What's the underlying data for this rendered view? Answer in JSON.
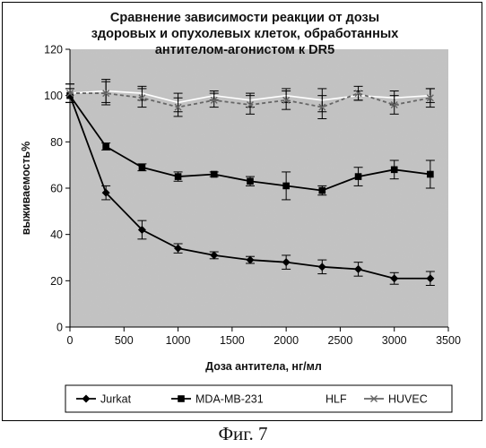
{
  "chart_data": {
    "type": "line",
    "title_lines": [
      "Сравнение зависимости реакции от дозы",
      "здоровых и опухолевых клеток, обработанных",
      "антителом-агонистом к DR5"
    ],
    "xlabel": "Доза антитела, нг/мл",
    "ylabel": "выживаемость%",
    "xlim": [
      0,
      3500
    ],
    "ylim": [
      0,
      120
    ],
    "x_ticks": [
      0,
      500,
      1000,
      1500,
      2000,
      2500,
      3000,
      3500
    ],
    "y_ticks": [
      0,
      20,
      40,
      60,
      80,
      100,
      120
    ],
    "grid": false,
    "legend_position": "bottom",
    "x": [
      0,
      333,
      667,
      1000,
      1333,
      1667,
      2000,
      2333,
      2667,
      3000,
      3333
    ],
    "series": [
      {
        "name": "Jurkat",
        "marker": "diamond",
        "color": "#000000",
        "values": [
          100,
          58,
          42,
          34,
          31,
          29,
          28,
          26,
          25,
          21,
          21
        ],
        "errors": [
          3,
          3,
          4,
          2,
          1.5,
          1.5,
          3,
          3,
          3,
          2.5,
          3
        ]
      },
      {
        "name": "MDA-MB-231",
        "marker": "square",
        "color": "#000000",
        "values": [
          100,
          78,
          69,
          65,
          66,
          63,
          61,
          59,
          65,
          68,
          66
        ],
        "errors": [
          3,
          1.5,
          1.5,
          2,
          1,
          2,
          6,
          2,
          4,
          4,
          6
        ]
      },
      {
        "name": "HLF",
        "marker": "none",
        "color": "#ffffff",
        "values": [
          101,
          102,
          101,
          97,
          100,
          98,
          100,
          98,
          100,
          99,
          100
        ],
        "errors": [
          4,
          5,
          3,
          4,
          2,
          3,
          3,
          5,
          2,
          3,
          3
        ]
      },
      {
        "name": "HUVEC",
        "marker": "x",
        "color": "#666666",
        "values": [
          101,
          101,
          99,
          95,
          98,
          96,
          98,
          95,
          101,
          96,
          99
        ],
        "errors": [
          4,
          5,
          4,
          4,
          3,
          4,
          4,
          5,
          3,
          4,
          4
        ]
      }
    ]
  },
  "caption": "Фиг. 7"
}
